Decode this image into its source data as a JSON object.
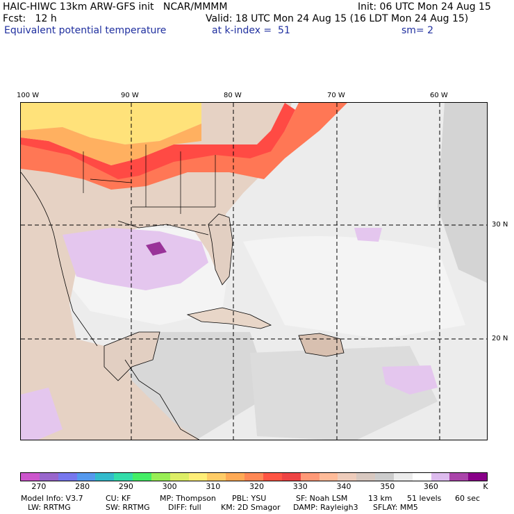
{
  "header": {
    "title": "HAIC-HIWC 13km ARW-GFS init   NCAR/MMMM",
    "init": "Init: 06 UTC Mon 24 Aug 15",
    "fcst": "Fcst:   12 h",
    "valid": "Valid: 18 UTC Mon 24 Aug 15 (16 LDT Mon 24 Aug 15)",
    "field": "Equivalent potential temperature",
    "level": "at k-index =  51",
    "smooth": "sm= 2"
  },
  "map": {
    "lon_labels": [
      "100 W",
      "90 W",
      "80 W",
      "70 W",
      "60 W"
    ],
    "lat_labels": [
      "30 N",
      "20 N"
    ]
  },
  "colorbar": {
    "colors": [
      "#cc55cc",
      "#9966cc",
      "#7777ee",
      "#5599ee",
      "#33bbcc",
      "#33ddaa",
      "#44ee66",
      "#99ee55",
      "#ddee66",
      "#ffee77",
      "#ffcc66",
      "#ffaa55",
      "#ff8855",
      "#ff5544",
      "#ee4444",
      "#ff9977",
      "#ffbb99",
      "#eeccbb",
      "#d8c8c0",
      "#cccccc",
      "#ececec",
      "#ffffff",
      "#ddbbee",
      "#aa44aa",
      "#880088"
    ],
    "ticks": [
      "270",
      "280",
      "290",
      "300",
      "310",
      "320",
      "330",
      "340",
      "350",
      "360"
    ],
    "unit": "K"
  },
  "footer": {
    "line1": [
      "Model Info: V3.7",
      "CU: KF",
      "MP: Thompson",
      "PBL: YSU",
      "SF: Noah LSM",
      "13 km",
      "51 levels",
      "60 sec"
    ],
    "line2": [
      "LW: RRTMG",
      "SW: RRTMG",
      "DIFF: full",
      "KM: 2D Smagor",
      "DAMP: Rayleigh3",
      "SFLAY: MM5"
    ]
  }
}
